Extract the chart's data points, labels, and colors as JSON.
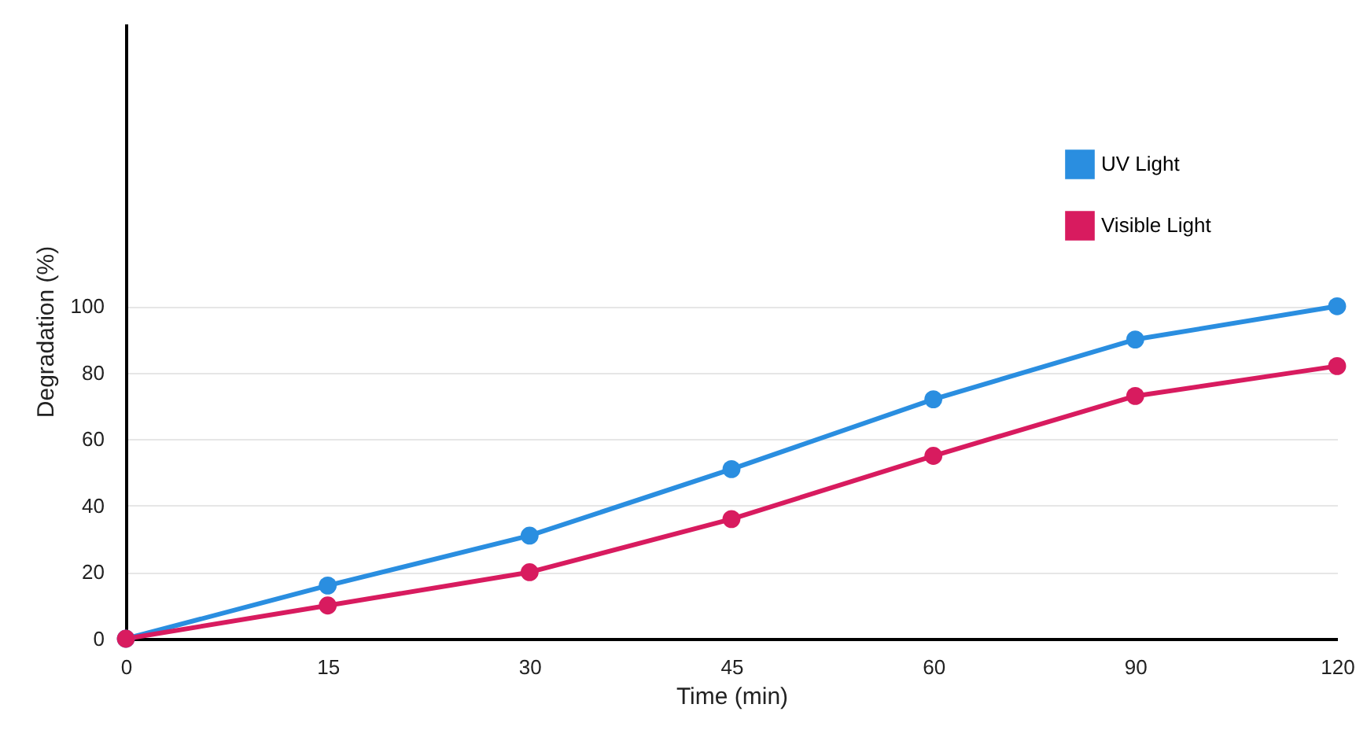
{
  "chart_data": {
    "type": "line",
    "xlabel": "Time (min)",
    "ylabel": "Degradation (%)",
    "categories": [
      "0",
      "15",
      "30",
      "45",
      "60",
      "90",
      "120"
    ],
    "series": [
      {
        "name": "UV Light",
        "color": "#2a8ee0",
        "values": [
          0,
          16,
          31,
          51,
          72,
          90,
          100
        ]
      },
      {
        "name": "Visible Light",
        "color": "#d81b5f",
        "values": [
          0,
          10,
          20,
          36,
          55,
          73,
          82
        ]
      }
    ],
    "ylim": [
      0,
      185
    ],
    "yticks": [
      0,
      20,
      40,
      60,
      80,
      100
    ],
    "grid": "y",
    "legend": "top right",
    "marker": "circle",
    "line_style": "solid"
  }
}
